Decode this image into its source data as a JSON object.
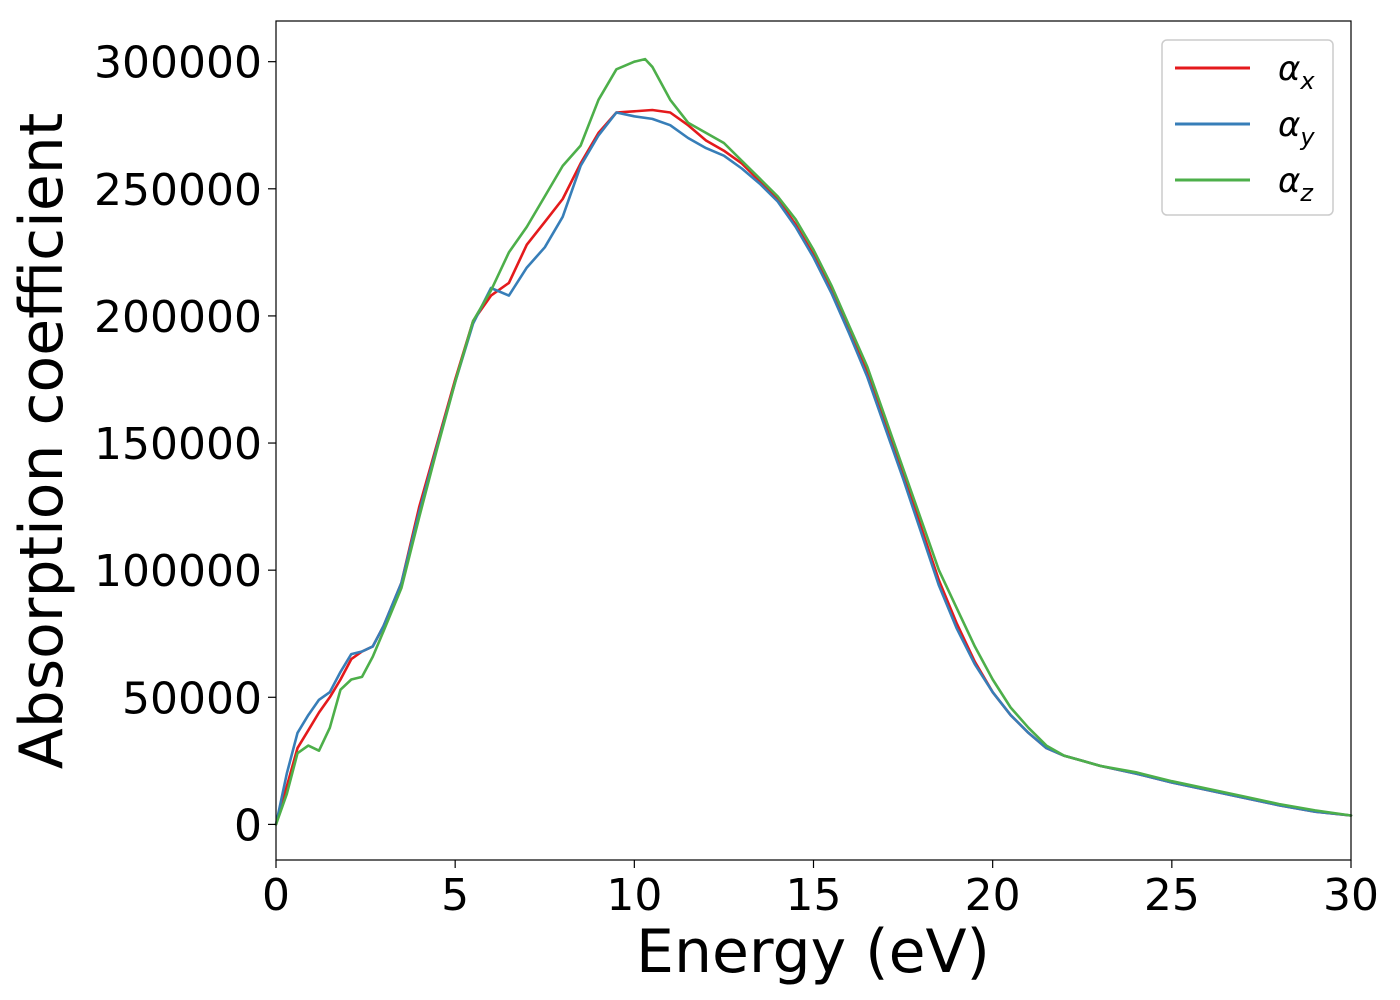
{
  "chart_data": {
    "type": "line",
    "xlabel": "Energy (eV)",
    "ylabel": "Absorption coefficient",
    "xlim": [
      0,
      30
    ],
    "ylim": [
      -14000,
      316000
    ],
    "xticks": [
      "0",
      "5",
      "10",
      "15",
      "20",
      "25",
      "30"
    ],
    "yticks": [
      "0",
      "50000",
      "100000",
      "150000",
      "200000",
      "250000",
      "300000"
    ],
    "grid": false,
    "legend_position": "top-right",
    "series": [
      {
        "name": "αx",
        "label_base": "α",
        "label_sub": "x",
        "color": "#e41a1c",
        "x": [
          0,
          0.3,
          0.6,
          0.9,
          1.2,
          1.5,
          1.8,
          2.1,
          2.4,
          2.7,
          3.0,
          3.5,
          4.0,
          4.5,
          5.0,
          5.5,
          6.0,
          6.5,
          7.0,
          7.5,
          8.0,
          8.5,
          9.0,
          9.5,
          10.0,
          10.5,
          11.0,
          11.5,
          12.0,
          12.5,
          13.0,
          13.5,
          14.0,
          14.5,
          15.0,
          15.5,
          16.0,
          16.5,
          17.0,
          17.5,
          18.0,
          18.5,
          19.0,
          19.5,
          20.0,
          20.5,
          21.0,
          21.5,
          22.0,
          22.5,
          23.0,
          24.0,
          25.0,
          26.0,
          27.0,
          28.0,
          29.0,
          30.0
        ],
        "y": [
          0,
          15000,
          30000,
          37000,
          44000,
          50000,
          57000,
          65000,
          68000,
          70000,
          78000,
          95000,
          125000,
          150000,
          175000,
          198000,
          208000,
          213000,
          228000,
          237000,
          246000,
          260000,
          272000,
          280000,
          280500,
          281000,
          280000,
          275000,
          269000,
          265000,
          260000,
          253000,
          246000,
          236000,
          224000,
          210000,
          194000,
          178000,
          158000,
          138000,
          117000,
          96000,
          79000,
          64000,
          52000,
          43000,
          36000,
          30000,
          27000,
          25000,
          23000,
          20000,
          16500,
          13500,
          10500,
          7500,
          5000,
          3500
        ]
      },
      {
        "name": "αy",
        "label_base": "α",
        "label_sub": "y",
        "color": "#377eb8",
        "x": [
          0,
          0.3,
          0.6,
          0.9,
          1.2,
          1.5,
          1.8,
          2.1,
          2.4,
          2.7,
          3.0,
          3.5,
          4.0,
          4.5,
          5.0,
          5.5,
          6.0,
          6.5,
          7.0,
          7.5,
          8.0,
          8.5,
          9.0,
          9.5,
          10.0,
          10.5,
          11.0,
          11.5,
          12.0,
          12.5,
          13.0,
          13.5,
          14.0,
          14.5,
          15.0,
          15.5,
          16.0,
          16.5,
          17.0,
          17.5,
          18.0,
          18.5,
          19.0,
          19.5,
          20.0,
          20.5,
          21.0,
          21.5,
          22.0,
          22.5,
          23.0,
          24.0,
          25.0,
          26.0,
          27.0,
          28.0,
          29.0,
          30.0
        ],
        "y": [
          0,
          20000,
          36000,
          43000,
          49000,
          52000,
          60000,
          67000,
          68000,
          70000,
          78000,
          95000,
          123000,
          149000,
          174000,
          197000,
          211000,
          208000,
          219000,
          227000,
          239000,
          259000,
          271000,
          280000,
          278500,
          277500,
          275000,
          270000,
          266000,
          263000,
          258000,
          252000,
          245000,
          235000,
          223000,
          209000,
          193000,
          176000,
          156000,
          136000,
          115000,
          94000,
          77000,
          63000,
          52000,
          43000,
          36000,
          30000,
          27000,
          25000,
          23000,
          20000,
          16500,
          13500,
          10500,
          7500,
          5000,
          3500
        ]
      },
      {
        "name": "αz",
        "label_base": "α",
        "label_sub": "z",
        "color": "#4daf4a",
        "x": [
          0,
          0.3,
          0.6,
          0.9,
          1.2,
          1.5,
          1.8,
          2.1,
          2.4,
          2.7,
          3.0,
          3.5,
          4.0,
          4.5,
          5.0,
          5.5,
          6.0,
          6.5,
          7.0,
          7.5,
          8.0,
          8.5,
          9.0,
          9.5,
          10.0,
          10.3,
          10.5,
          11.0,
          11.5,
          12.0,
          12.5,
          13.0,
          13.5,
          14.0,
          14.5,
          15.0,
          15.5,
          16.0,
          16.5,
          17.0,
          17.5,
          18.0,
          18.5,
          19.0,
          19.5,
          20.0,
          20.5,
          21.0,
          21.5,
          22.0,
          22.5,
          23.0,
          24.0,
          25.0,
          26.0,
          27.0,
          28.0,
          29.0,
          30.0
        ],
        "y": [
          0,
          12000,
          28000,
          31000,
          29000,
          38000,
          53000,
          57000,
          58000,
          66000,
          76000,
          93000,
          121000,
          148000,
          174000,
          198000,
          210000,
          225000,
          235000,
          247000,
          259000,
          267000,
          285000,
          297000,
          300000,
          301000,
          298000,
          285000,
          276000,
          272000,
          268000,
          261000,
          254000,
          247000,
          238000,
          226000,
          212000,
          196000,
          180000,
          160000,
          140000,
          120000,
          100000,
          85000,
          70000,
          57000,
          46000,
          38000,
          31000,
          27000,
          25000,
          23000,
          20500,
          17000,
          14000,
          11000,
          8000,
          5500,
          3500
        ]
      }
    ]
  }
}
